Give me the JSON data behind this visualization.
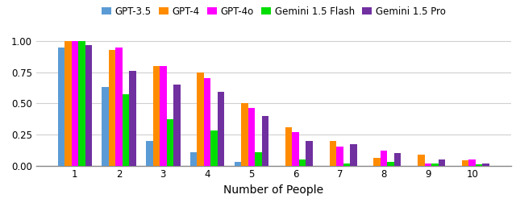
{
  "categories": [
    1,
    2,
    3,
    4,
    5,
    6,
    7,
    8,
    9,
    10
  ],
  "series": {
    "GPT-3.5": [
      0.95,
      0.63,
      0.2,
      0.11,
      0.03,
      0.0,
      0.0,
      0.0,
      0.0,
      0.0
    ],
    "GPT-4": [
      1.0,
      0.93,
      0.8,
      0.75,
      0.5,
      0.31,
      0.2,
      0.06,
      0.09,
      0.04
    ],
    "GPT-4o": [
      1.0,
      0.95,
      0.8,
      0.7,
      0.46,
      0.27,
      0.15,
      0.12,
      0.02,
      0.05
    ],
    "Gemini 1.5 Flash": [
      1.0,
      0.57,
      0.37,
      0.28,
      0.11,
      0.05,
      0.02,
      0.03,
      0.02,
      0.01
    ],
    "Gemini 1.5 Pro": [
      0.97,
      0.76,
      0.65,
      0.59,
      0.4,
      0.2,
      0.17,
      0.1,
      0.05,
      0.02
    ]
  },
  "colors": {
    "GPT-3.5": "#5B9BD5",
    "GPT-4": "#FF8C00",
    "GPT-4o": "#FF00FF",
    "Gemini 1.5 Flash": "#00DD00",
    "Gemini 1.5 Pro": "#7030A0"
  },
  "xlabel": "Number of People",
  "ylim": [
    0.0,
    1.08
  ],
  "yticks": [
    0.0,
    0.25,
    0.5,
    0.75,
    1.0
  ],
  "bar_width": 0.155,
  "bar_gap": 0.0,
  "background_color": "#ffffff",
  "grid_color": "#d0d0d0",
  "legend_fontsize": 8.5,
  "tick_fontsize": 8.5,
  "xlabel_fontsize": 10
}
